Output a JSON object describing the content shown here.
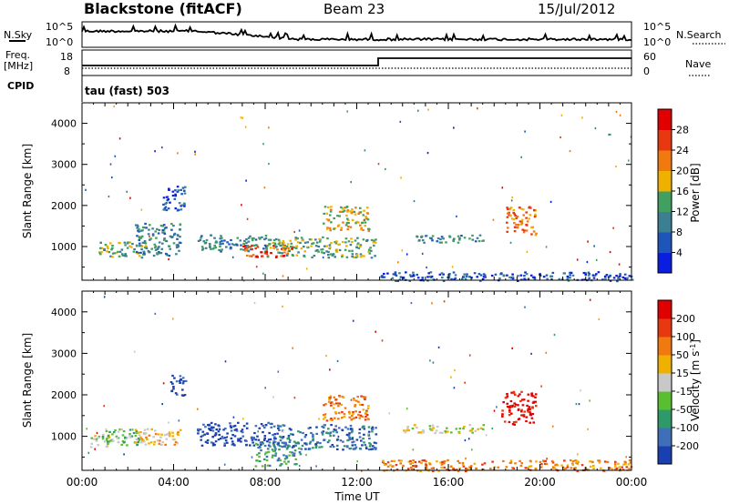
{
  "header": {
    "station": "Blackstone (fitACF)",
    "beam": "Beam 23",
    "date": "15/Jul/2012"
  },
  "aux_panels": {
    "nsky_label": "N.Sky",
    "nsearch_label": "N.Search",
    "freq_label_1": "Freq.",
    "freq_label_2": "[MHz]",
    "nave_label": "Nave",
    "cpid_label": "CPID",
    "cpid_text": "tau (fast) 503",
    "noise_ticks": [
      "10^5",
      "10^0"
    ],
    "freq_ticks": [
      "18",
      "8"
    ],
    "nave_ticks": [
      "60",
      "0"
    ]
  },
  "chart_data": [
    {
      "type": "heatmap",
      "name": "power",
      "ylabel": "Slant Range [km]",
      "ylim": [
        180,
        4500
      ],
      "yticks": [
        1000,
        2000,
        3000,
        4000
      ],
      "xlim": [
        0,
        24
      ],
      "xticks": [
        "00:00",
        "04:00",
        "08:00",
        "12:00",
        "16:00",
        "20:00",
        "00:00"
      ],
      "colorbar": {
        "label": "Power [dB]",
        "ticks": [
          "4",
          "8",
          "12",
          "16",
          "20",
          "24",
          "28"
        ],
        "colors": [
          "#0a1ee0",
          "#1d56b8",
          "#3c7f93",
          "#40a060",
          "#f0b000",
          "#f07a10",
          "#e83810",
          "#e00000"
        ]
      },
      "regions": [
        {
          "t0": 0.7,
          "t1": 2.8,
          "r0": 750,
          "r1": 1150,
          "level": 3
        },
        {
          "t0": 2.3,
          "t1": 4.3,
          "r0": 800,
          "r1": 1600,
          "level": 2
        },
        {
          "t0": 3.5,
          "t1": 4.5,
          "r0": 1900,
          "r1": 2500,
          "level": 1
        },
        {
          "t0": 5.0,
          "t1": 8.0,
          "r0": 900,
          "r1": 1300,
          "level": 2
        },
        {
          "t0": 7.0,
          "t1": 9.2,
          "r0": 750,
          "r1": 1050,
          "level": 6
        },
        {
          "t0": 8.0,
          "t1": 12.8,
          "r0": 750,
          "r1": 1250,
          "level": 3
        },
        {
          "t0": 10.5,
          "t1": 12.5,
          "r0": 1400,
          "r1": 2000,
          "level": 4
        },
        {
          "t0": 14.5,
          "t1": 17.5,
          "r0": 1100,
          "r1": 1300,
          "level": 2
        },
        {
          "t0": 18.5,
          "t1": 19.8,
          "r0": 1300,
          "r1": 2000,
          "level": 5
        },
        {
          "t0": 13.0,
          "t1": 24.0,
          "r0": 180,
          "r1": 400,
          "level": 1
        }
      ]
    },
    {
      "type": "heatmap",
      "name": "velocity",
      "ylabel": "Slant Range [km]",
      "ylim": [
        180,
        4500
      ],
      "yticks": [
        1000,
        2000,
        3000,
        4000
      ],
      "xlim": [
        0,
        24
      ],
      "xticks": [
        "00:00",
        "04:00",
        "08:00",
        "12:00",
        "16:00",
        "20:00",
        "00:00"
      ],
      "xlabel": "Time UT",
      "colorbar": {
        "label": "Velocity [m s-1]",
        "ticks": [
          "200",
          "100",
          "50",
          "15",
          "-15",
          "-50",
          "-100",
          "-200"
        ],
        "colors": [
          "#1a3fb0",
          "#3e6fb8",
          "#2e9a6a",
          "#58c030",
          "#c8c8c8",
          "#f0b000",
          "#f07a10",
          "#e83810",
          "#e00000"
        ]
      },
      "regions": [
        {
          "t0": 0.3,
          "t1": 1.2,
          "r0": 750,
          "r1": 1050,
          "level": 4
        },
        {
          "t0": 0.8,
          "t1": 2.5,
          "r0": 800,
          "r1": 1200,
          "level": 3
        },
        {
          "t0": 2.3,
          "t1": 4.3,
          "r0": 800,
          "r1": 1200,
          "level": 5
        },
        {
          "t0": 3.8,
          "t1": 4.5,
          "r0": 2000,
          "r1": 2500,
          "level": 0
        },
        {
          "t0": 5.0,
          "t1": 8.5,
          "r0": 800,
          "r1": 1350,
          "level": 0
        },
        {
          "t0": 7.5,
          "t1": 9.5,
          "r0": 300,
          "r1": 900,
          "level": 2
        },
        {
          "t0": 8.5,
          "t1": 12.8,
          "r0": 700,
          "r1": 1300,
          "level": 1
        },
        {
          "t0": 10.5,
          "t1": 12.5,
          "r0": 1400,
          "r1": 2000,
          "level": 6
        },
        {
          "t0": 14.0,
          "t1": 17.5,
          "r0": 1100,
          "r1": 1300,
          "level": 4
        },
        {
          "t0": 18.3,
          "t1": 19.8,
          "r0": 1300,
          "r1": 2100,
          "level": 8
        },
        {
          "t0": 13.0,
          "t1": 24.0,
          "r0": 180,
          "r1": 450,
          "level": 6
        }
      ]
    }
  ]
}
